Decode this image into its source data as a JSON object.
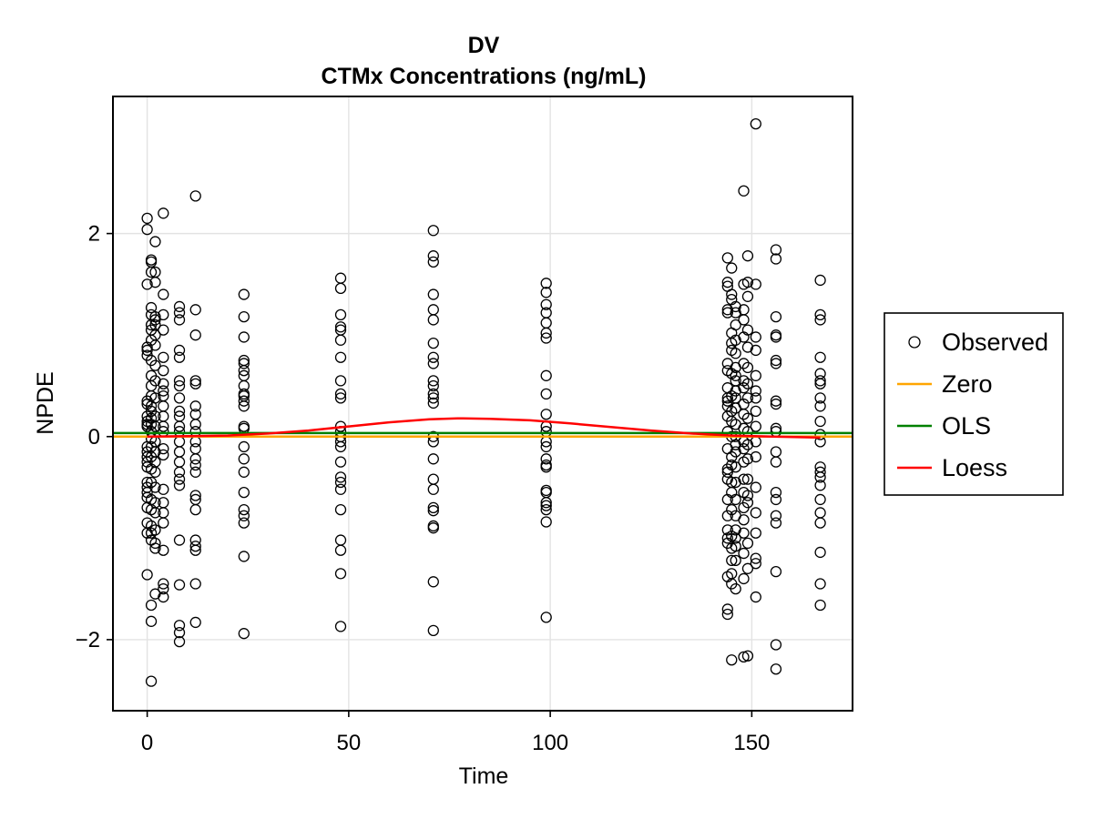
{
  "chart_data": {
    "type": "scatter",
    "title": "DV",
    "subtitle": "CTMx Concentrations (ng/mL)",
    "xlabel": "Time",
    "ylabel": "NPDE",
    "xlim": [
      -8.5,
      175
    ],
    "ylim": [
      -2.7,
      3.35
    ],
    "xticks": [
      0,
      50,
      100,
      150
    ],
    "yticks": [
      -2,
      0,
      2
    ],
    "xtick_labels": [
      "0",
      "50",
      "100",
      "150"
    ],
    "ytick_labels": [
      "−2",
      "0",
      "2"
    ],
    "grid": true,
    "legend_position": "right",
    "legend": [
      {
        "label": "Observed",
        "kind": "marker",
        "color": "#000000"
      },
      {
        "label": "Zero",
        "kind": "line",
        "color": "#FFA500"
      },
      {
        "label": "OLS",
        "kind": "line",
        "color": "#008000"
      },
      {
        "label": "Loess",
        "kind": "line",
        "color": "#FF0000"
      }
    ],
    "lines": {
      "zero": {
        "y": 0
      },
      "ols": {
        "intercept": 0.035,
        "slope": 0.0
      },
      "loess": {
        "x": [
          0,
          10,
          20,
          30,
          40,
          50,
          60,
          70,
          77,
          85,
          95,
          105,
          115,
          125,
          135,
          145,
          155,
          167
        ],
        "y": [
          0.0,
          0.005,
          0.01,
          0.03,
          0.06,
          0.1,
          0.14,
          0.17,
          0.18,
          0.175,
          0.16,
          0.13,
          0.095,
          0.06,
          0.03,
          0.01,
          0.0,
          -0.01
        ]
      }
    },
    "series": [
      {
        "name": "Observed",
        "time": 0,
        "values": [
          2.15,
          2.04,
          1.5,
          0.88,
          0.85,
          0.8,
          0.35,
          0.32,
          0.2,
          0.15,
          0.12,
          0.1,
          -0.1,
          -0.15,
          -0.2,
          -0.25,
          -0.3,
          -0.45,
          -0.5,
          -0.55,
          -0.6,
          -0.7,
          -0.85,
          -0.95,
          -1.36
        ]
      },
      {
        "name": "Observed",
        "time": 1,
        "values": [
          1.74,
          1.72,
          1.62,
          1.27,
          1.2,
          1.1,
          1.05,
          0.95,
          0.75,
          0.6,
          0.5,
          0.4,
          0.3,
          0.25,
          0.18,
          0.12,
          0.05,
          -0.02,
          -0.1,
          -0.2,
          -0.32,
          -0.45,
          -0.62,
          -0.72,
          -0.88,
          -0.95,
          -1.02,
          -1.66,
          -1.82,
          -2.41
        ]
      },
      {
        "name": "Observed",
        "time": 2,
        "values": [
          1.92,
          1.62,
          1.52,
          1.18,
          1.15,
          1.1,
          1.0,
          0.9,
          0.7,
          0.55,
          0.38,
          0.2,
          0.1,
          -0.05,
          -0.15,
          -0.25,
          -0.35,
          -0.5,
          -0.65,
          -0.75,
          -0.92,
          -1.05,
          -1.1,
          -1.55
        ]
      },
      {
        "name": "Observed",
        "time": 4,
        "values": [
          2.2,
          1.4,
          1.2,
          1.05,
          0.78,
          0.65,
          0.52,
          0.45,
          0.4,
          0.3,
          0.2,
          0.1,
          0.05,
          -0.12,
          -0.18,
          -0.52,
          -0.65,
          -0.75,
          -0.85,
          -1.12,
          -1.45,
          -1.5,
          -1.58
        ]
      },
      {
        "name": "Observed",
        "time": 8,
        "values": [
          1.28,
          1.22,
          1.15,
          0.85,
          0.78,
          0.55,
          0.5,
          0.38,
          0.25,
          0.2,
          0.1,
          0.05,
          -0.05,
          -0.15,
          -0.25,
          -0.35,
          -0.42,
          -0.48,
          -1.02,
          -1.46,
          -1.86,
          -1.93,
          -2.02
        ]
      },
      {
        "name": "Observed",
        "time": 12,
        "values": [
          2.37,
          1.25,
          1.0,
          0.55,
          0.52,
          0.3,
          0.22,
          0.12,
          0.05,
          -0.05,
          -0.12,
          -0.22,
          -0.28,
          -0.35,
          -0.58,
          -0.62,
          -0.72,
          -1.02,
          -1.08,
          -1.12,
          -1.45,
          -1.83
        ]
      },
      {
        "name": "Observed",
        "time": 24,
        "values": [
          1.4,
          1.18,
          0.98,
          0.75,
          0.72,
          0.65,
          0.6,
          0.5,
          0.42,
          0.4,
          0.35,
          0.3,
          0.1,
          0.08,
          -0.1,
          -0.22,
          -0.35,
          -0.55,
          -0.72,
          -0.78,
          -0.85,
          -1.18,
          -1.94
        ]
      },
      {
        "name": "Observed",
        "time": 48,
        "values": [
          1.56,
          1.46,
          1.2,
          1.08,
          1.05,
          0.95,
          0.78,
          0.55,
          0.42,
          0.38,
          0.1,
          0.05,
          0.0,
          -0.05,
          -0.1,
          -0.25,
          -0.4,
          -0.45,
          -0.52,
          -0.72,
          -1.02,
          -1.12,
          -1.35,
          -1.87
        ]
      },
      {
        "name": "Observed",
        "time": 71,
        "values": [
          2.03,
          1.78,
          1.72,
          1.4,
          1.25,
          1.15,
          0.92,
          0.78,
          0.72,
          0.55,
          0.5,
          0.42,
          0.38,
          0.33,
          0.0,
          -0.05,
          -0.22,
          -0.42,
          -0.52,
          -0.7,
          -0.73,
          -0.88,
          -0.9,
          -1.43,
          -1.91
        ]
      },
      {
        "name": "Observed",
        "time": 99,
        "values": [
          1.51,
          1.42,
          1.3,
          1.22,
          1.12,
          1.02,
          0.97,
          0.6,
          0.42,
          0.22,
          0.1,
          0.05,
          -0.05,
          -0.1,
          -0.22,
          -0.28,
          -0.3,
          -0.53,
          -0.55,
          -0.65,
          -0.68,
          -0.72,
          -0.84,
          -1.78
        ]
      },
      {
        "name": "Observed",
        "time": 144,
        "values": [
          1.76,
          1.52,
          1.48,
          1.25,
          1.22,
          0.72,
          0.65,
          0.48,
          0.38,
          0.35,
          0.3,
          0.2,
          0.05,
          -0.12,
          -0.32,
          -0.35,
          -0.42,
          -0.62,
          -0.78,
          -0.92,
          -1.0,
          -1.05,
          -1.38,
          -1.7,
          -1.75
        ]
      },
      {
        "name": "Observed",
        "time": 145,
        "values": [
          1.66,
          1.4,
          1.35,
          1.02,
          0.92,
          0.85,
          0.62,
          0.4,
          0.25,
          0.15,
          0.0,
          -0.2,
          -0.28,
          -0.45,
          -0.55,
          -0.72,
          -0.98,
          -1.1,
          -1.22,
          -1.35,
          -1.45,
          -2.2
        ]
      },
      {
        "name": "Observed",
        "time": 146,
        "values": [
          1.28,
          1.22,
          1.1,
          0.95,
          0.82,
          0.68,
          0.6,
          0.55,
          0.45,
          0.38,
          0.28,
          0.12,
          0.0,
          -0.08,
          -0.15,
          -0.3,
          -0.45,
          -0.62,
          -0.78,
          -0.92,
          -1.0,
          -1.08,
          -1.22,
          -1.5
        ]
      },
      {
        "name": "Observed",
        "time": 148,
        "values": [
          2.42,
          1.5,
          1.25,
          1.15,
          0.98,
          0.72,
          0.55,
          0.48,
          0.32,
          0.22,
          0.08,
          -0.05,
          -0.12,
          -0.25,
          -0.42,
          -0.55,
          -0.7,
          -0.82,
          -0.95,
          -1.15,
          -1.4,
          -2.17
        ]
      },
      {
        "name": "Observed",
        "time": 149,
        "values": [
          1.78,
          1.52,
          1.38,
          1.05,
          0.88,
          0.68,
          0.52,
          0.38,
          0.18,
          0.05,
          -0.08,
          -0.22,
          -0.42,
          -0.58,
          -0.65,
          -1.05,
          -1.3,
          -2.16
        ]
      },
      {
        "name": "Observed",
        "time": 151,
        "values": [
          3.08,
          1.5,
          0.98,
          0.85,
          0.6,
          0.45,
          0.38,
          0.25,
          0.1,
          -0.05,
          -0.2,
          -0.5,
          -0.75,
          -0.95,
          -1.2,
          -1.25,
          -1.58
        ]
      },
      {
        "name": "Observed",
        "time": 156,
        "values": [
          1.84,
          1.75,
          1.18,
          1.0,
          0.98,
          0.75,
          0.72,
          0.35,
          0.32,
          0.08,
          0.05,
          -0.15,
          -0.25,
          -0.55,
          -0.62,
          -0.78,
          -0.85,
          -1.33,
          -2.05,
          -2.29
        ]
      },
      {
        "name": "Observed",
        "time": 167,
        "values": [
          1.54,
          1.2,
          1.15,
          0.78,
          0.62,
          0.55,
          0.52,
          0.38,
          0.3,
          0.15,
          0.02,
          -0.05,
          -0.3,
          -0.35,
          -0.4,
          -0.48,
          -0.62,
          -0.75,
          -0.85,
          -1.14,
          -1.45,
          -1.66
        ]
      }
    ]
  }
}
